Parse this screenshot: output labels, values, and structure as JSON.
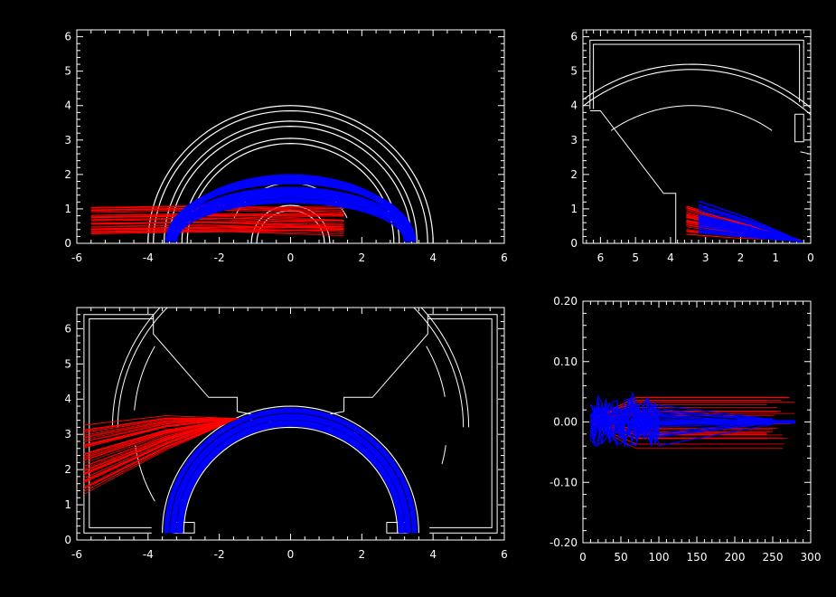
{
  "chart_data": [
    {
      "type": "line",
      "title": "",
      "xlabel": "",
      "ylabel": "",
      "xlim": [
        -6,
        6
      ],
      "ylim": [
        0,
        6.2
      ],
      "xticks": [
        "-6",
        "-4",
        "-2",
        "0",
        "2",
        "4",
        "6"
      ],
      "yticks": [
        "0",
        "1",
        "2",
        "3",
        "4",
        "5",
        "6"
      ],
      "reversed_x": false,
      "series": [
        {
          "color": "#ffffff",
          "role": "geometry"
        },
        {
          "color": "#ff0000",
          "role": "trajectories"
        },
        {
          "color": "#0000ff",
          "role": "trajectories"
        }
      ]
    },
    {
      "type": "line",
      "title": "",
      "xlabel": "",
      "ylabel": "",
      "xlim": [
        6.5,
        0
      ],
      "ylim": [
        0,
        6.2
      ],
      "xticks": [
        "6",
        "5",
        "4",
        "3",
        "2",
        "1",
        "0"
      ],
      "yticks": [
        "0",
        "1",
        "2",
        "3",
        "4",
        "5",
        "6"
      ],
      "reversed_x": true,
      "series": [
        {
          "color": "#ffffff",
          "role": "geometry"
        },
        {
          "color": "#ff0000",
          "role": "trajectories"
        },
        {
          "color": "#0000ff",
          "role": "trajectories"
        }
      ]
    },
    {
      "type": "line",
      "title": "",
      "xlabel": "",
      "ylabel": "",
      "xlim": [
        -6,
        6
      ],
      "ylim": [
        0,
        6.6
      ],
      "xticks": [
        "-6",
        "-4",
        "-2",
        "0",
        "2",
        "4",
        "6"
      ],
      "yticks": [
        "0",
        "1",
        "2",
        "3",
        "4",
        "5",
        "6"
      ],
      "reversed_x": false,
      "series": [
        {
          "color": "#ffffff",
          "role": "geometry"
        },
        {
          "color": "#ff0000",
          "role": "trajectories"
        },
        {
          "color": "#0000ff",
          "role": "trajectories"
        }
      ]
    },
    {
      "type": "line",
      "title": "",
      "xlabel": "",
      "ylabel": "",
      "xlim": [
        0,
        300
      ],
      "ylim": [
        -0.2,
        0.2
      ],
      "xticks": [
        "0",
        "50",
        "100",
        "150",
        "200",
        "250",
        "300"
      ],
      "yticks": [
        "-0.20",
        "-0.10",
        "0.00",
        "0.10",
        "0.20"
      ],
      "reversed_x": false,
      "series": [
        {
          "color": "#ff0000",
          "role": "deviation"
        },
        {
          "color": "#0000ff",
          "role": "deviation"
        }
      ]
    }
  ]
}
